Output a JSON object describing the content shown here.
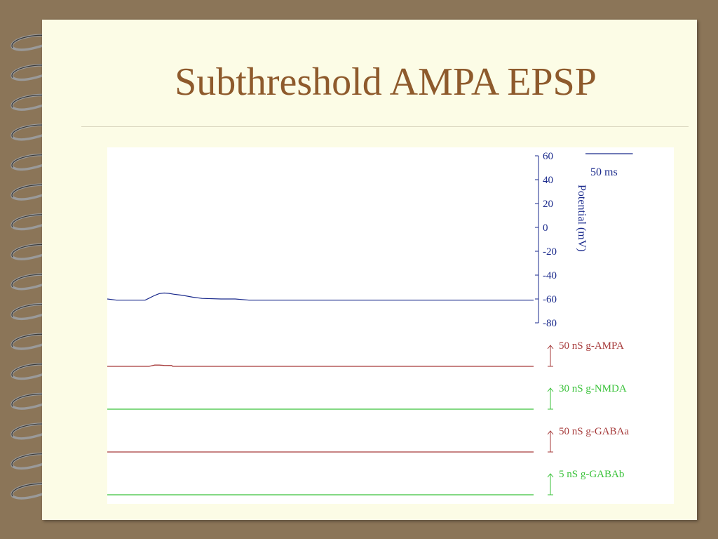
{
  "slide": {
    "title": "Subthreshold AMPA EPSP"
  },
  "chart_data": {
    "type": "line",
    "title": "Subthreshold AMPA EPSP",
    "ylabel": "Potential (mV)",
    "yticks": [
      "60",
      "40",
      "20",
      "0",
      "-20",
      "-40",
      "-60",
      "-80"
    ],
    "ylim": [
      -80,
      60
    ],
    "x_units": "ms",
    "xlim": [
      0,
      450
    ],
    "scale_bar": {
      "label": "50 ms",
      "value_ms": 50
    },
    "grid": false,
    "voltage_trace": {
      "color": "#1a2a8c",
      "x": [
        0,
        10,
        20,
        30,
        40,
        45,
        50,
        55,
        60,
        65,
        70,
        80,
        90,
        100,
        120,
        135,
        150,
        200,
        300,
        450
      ],
      "y": [
        -60,
        -61,
        -61,
        -61,
        -61,
        -59,
        -57,
        -55.5,
        -55,
        -55.3,
        -56,
        -57,
        -58.5,
        -59.5,
        -60,
        -60,
        -61,
        -61,
        -61,
        -61
      ]
    },
    "conductance_traces": [
      {
        "label": "50 nS g-AMPA",
        "color": "#a63a3a",
        "scale_nS": 50,
        "x": [
          0,
          44,
          47,
          50,
          55,
          60,
          65,
          68,
          69,
          450
        ],
        "y": [
          0,
          0,
          1.5,
          3,
          3,
          2.2,
          2,
          2,
          0,
          0
        ]
      },
      {
        "label": "30 nS g-NMDA",
        "color": "#3ac23a",
        "scale_nS": 30,
        "x": [
          0,
          450
        ],
        "y": [
          0,
          0
        ]
      },
      {
        "label": "50 nS g-GABAa",
        "color": "#a63a3a",
        "scale_nS": 50,
        "x": [
          0,
          450
        ],
        "y": [
          0,
          0
        ]
      },
      {
        "label": "5 nS g-GABAb",
        "color": "#3ac23a",
        "scale_nS": 5,
        "x": [
          0,
          450
        ],
        "y": [
          0,
          0
        ]
      }
    ]
  }
}
